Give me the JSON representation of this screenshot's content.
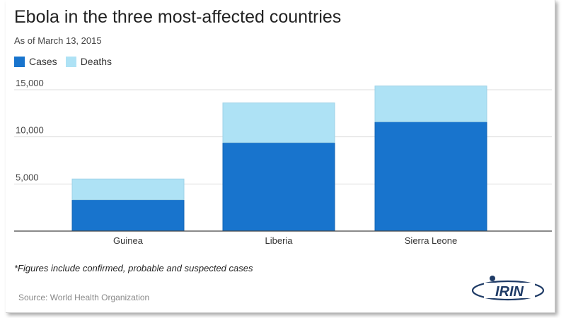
{
  "title": "Ebola in the three most-affected countries",
  "subtitle": "As of March 13, 2015",
  "colors": {
    "cases": "#1874cd",
    "deaths": "#aee2f5",
    "grid": "#dddddd",
    "axis": "#444444"
  },
  "legend": {
    "cases": "Cases",
    "deaths": "Deaths"
  },
  "footnote": "*Figures include confirmed, probable and suspected cases",
  "source": "Source: World Health Organization",
  "logo_text": "IRIN",
  "chart_data": {
    "type": "bar",
    "stacked": true,
    "categories": [
      "Guinea",
      "Liberia",
      "Sierra Leone"
    ],
    "series": [
      {
        "name": "Cases",
        "values": [
          3330,
          9400,
          11600
        ]
      },
      {
        "name": "Deaths",
        "values": [
          2200,
          4200,
          3800
        ]
      }
    ],
    "yticks": [
      5000,
      10000,
      15000
    ],
    "ytick_labels": [
      "5,000",
      "10,000",
      "15,000"
    ],
    "ylim": [
      0,
      15000
    ],
    "grid": true,
    "legend_position": "top-left"
  }
}
